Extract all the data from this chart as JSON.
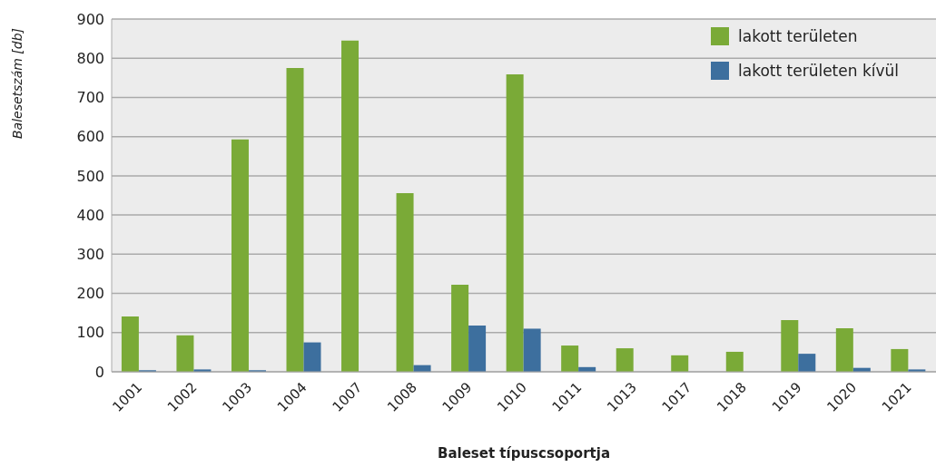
{
  "chart_data": {
    "type": "bar",
    "xlabel": "Baleset típuscsoportja",
    "ylabel": "Balesetszám [db]",
    "categories": [
      "1001",
      "1002",
      "1003",
      "1004",
      "1007",
      "1008",
      "1009",
      "1010",
      "1011",
      "1013",
      "1017",
      "1018",
      "1019",
      "1020",
      "1021"
    ],
    "series": [
      {
        "name": "lakott területen",
        "color": "#7aaa37",
        "values": [
          141,
          93,
          593,
          775,
          845,
          456,
          222,
          759,
          67,
          60,
          42,
          51,
          132,
          111,
          58
        ]
      },
      {
        "name": "lakott területen kívül",
        "color": "#3d6f9e",
        "values": [
          4,
          6,
          4,
          75,
          null,
          17,
          118,
          110,
          12,
          null,
          0,
          null,
          46,
          10,
          6
        ]
      }
    ],
    "ylim": [
      0,
      900
    ],
    "yticks": [
      0,
      100,
      200,
      300,
      400,
      500,
      600,
      700,
      800,
      900
    ],
    "grid": "y",
    "legend": "top right"
  }
}
